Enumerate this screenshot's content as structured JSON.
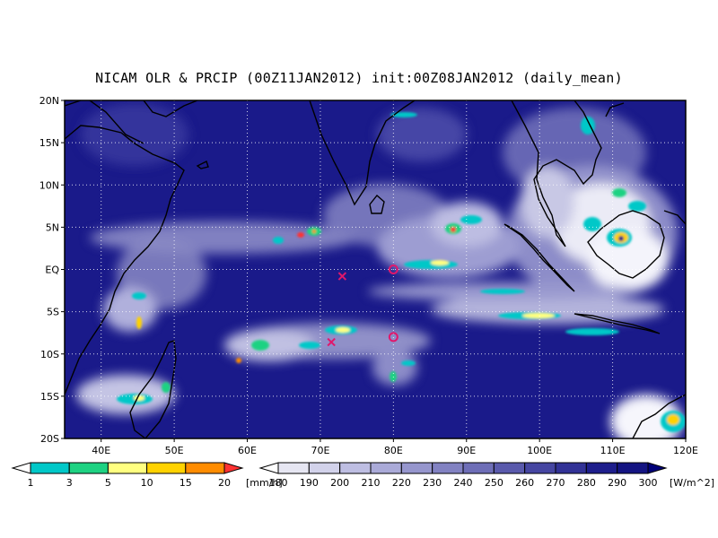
{
  "title": "NICAM OLR & PRCIP (00Z11JAN2012) init:00Z08JAN2012 (daily_mean)",
  "map": {
    "lon_range": [
      35,
      120
    ],
    "lat_range": [
      -20,
      20
    ],
    "lat_ticks": [
      {
        "value": 20,
        "label": "20N"
      },
      {
        "value": 15,
        "label": "15N"
      },
      {
        "value": 10,
        "label": "10N"
      },
      {
        "value": 5,
        "label": "5N"
      },
      {
        "value": 0,
        "label": "EQ"
      },
      {
        "value": -5,
        "label": "5S"
      },
      {
        "value": -10,
        "label": "10S"
      },
      {
        "value": -15,
        "label": "15S"
      },
      {
        "value": -20,
        "label": "20S"
      }
    ],
    "lon_ticks": [
      {
        "value": 40,
        "label": "40E"
      },
      {
        "value": 50,
        "label": "50E"
      },
      {
        "value": 60,
        "label": "60E"
      },
      {
        "value": 70,
        "label": "70E"
      },
      {
        "value": 80,
        "label": "80E"
      },
      {
        "value": 90,
        "label": "90E"
      },
      {
        "value": 100,
        "label": "100E"
      },
      {
        "value": 110,
        "label": "110E"
      },
      {
        "value": 120,
        "label": "120E"
      }
    ],
    "grid": true,
    "markers": [
      {
        "type": "x",
        "lon": 73,
        "lat": -0.8,
        "color": "#e0186c"
      },
      {
        "type": "x",
        "lon": 71.5,
        "lat": -8.6,
        "color": "#e0186c"
      },
      {
        "type": "circle",
        "lon": 80,
        "lat": 0,
        "color": "#e0186c"
      },
      {
        "type": "circle",
        "lon": 80,
        "lat": -8,
        "color": "#e0186c"
      }
    ]
  },
  "precip_scale": {
    "unit": "[mm/h]",
    "labels": [
      "1",
      "3",
      "5",
      "10",
      "15",
      "20"
    ],
    "colors": [
      "#ffffff",
      "#00c8c8",
      "#1ed282",
      "#ffff80",
      "#ffd200",
      "#ff8c00",
      "#ff3232"
    ]
  },
  "olr_scale": {
    "unit": "[W/m^2]",
    "labels": [
      "180",
      "190",
      "200",
      "210",
      "220",
      "230",
      "240",
      "250",
      "260",
      "270",
      "280",
      "290",
      "300"
    ],
    "colors": [
      "#ffffff",
      "#e6e6f2",
      "#d2d2ea",
      "#bebee2",
      "#aaaad8",
      "#9696cd",
      "#8282c2",
      "#6e6eb7",
      "#5a5aac",
      "#4646a1",
      "#323296",
      "#1e1e8c",
      "#141482",
      "#000078"
    ]
  }
}
